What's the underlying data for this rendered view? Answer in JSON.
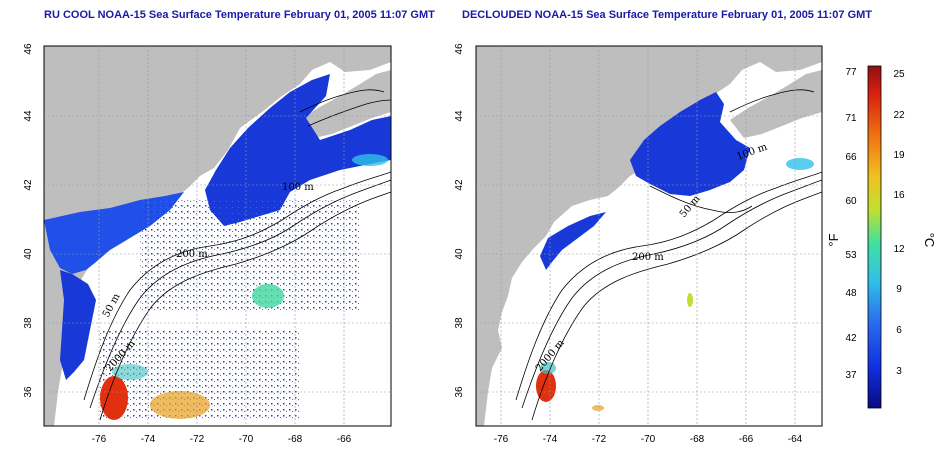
{
  "titles": {
    "left": "RU COOL NOAA-15 Sea Surface Temperature February 01, 2005 11:07 GMT",
    "right": "DECLOUDED NOAA-15 Sea Surface Temperature February 01, 2005 11:07 GMT"
  },
  "axes": {
    "x_ticks": [
      "-76",
      "-74",
      "-72",
      "-70",
      "-68",
      "-66",
      "-64"
    ],
    "y_ticks": [
      "46",
      "44",
      "42",
      "40",
      "38",
      "36"
    ],
    "lon_range": [
      -77.2,
      -63.0
    ],
    "lat_range": [
      35.0,
      46.0
    ]
  },
  "contour_labels": {
    "left": [
      "50 m",
      "100 m",
      "200 m",
      "2000 m"
    ],
    "right": [
      "100 m",
      "50 m",
      "200 m",
      "2000 m"
    ]
  },
  "colorbar": {
    "fahrenheit_unit": "°F",
    "celsius_unit": "°C",
    "fahrenheit_ticks": [
      "77",
      "71",
      "66",
      "60",
      "53",
      "48",
      "42",
      "37"
    ],
    "celsius_ticks": [
      "25",
      "22",
      "19",
      "16",
      "12",
      "9",
      "6",
      "3"
    ],
    "colors": [
      "#0a0a80",
      "#1030e0",
      "#2a6cf0",
      "#30c0e8",
      "#40e0a0",
      "#c0e030",
      "#f0c020",
      "#f07010",
      "#d82010",
      "#901010"
    ]
  },
  "map_colors": {
    "land": "#bebebe",
    "cold_water": "#1838d8",
    "warm_water": "#e03010"
  }
}
